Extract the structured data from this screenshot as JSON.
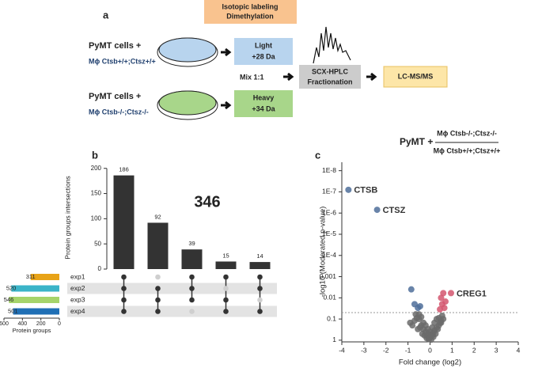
{
  "diagram": {
    "panel": "a",
    "label_box": [
      "Isotopic labeling",
      "Dimethylation"
    ],
    "top_cells": "PyMT cells +",
    "top_genotype": "Mϕ Ctsb+/+;Ctsz+/+",
    "light": [
      "Light",
      "+28 Da"
    ],
    "mix": "Mix 1:1",
    "bottom_cells": "PyMT cells +",
    "bottom_genotype": "Mϕ Ctsb-/-;Ctsz-/-",
    "heavy": [
      "Heavy",
      "+34 Da"
    ],
    "scx": [
      "SCX-HPLC",
      "Fractionation"
    ],
    "lcms": "LC-MS/MS"
  },
  "chart_data": [
    {
      "type": "upset",
      "panel": "b",
      "ylabel": "Protein groups intersections",
      "annotation": "346",
      "values": [
        186,
        92,
        39,
        15,
        14
      ],
      "ylim": [
        0,
        220
      ],
      "yticks": [
        0,
        50,
        100,
        150,
        200
      ],
      "color": "#333333",
      "sets": [
        {
          "name": "exp1",
          "size": 311,
          "color": "#e8a317"
        },
        {
          "name": "exp2",
          "size": 520,
          "color": "#3bb4c8"
        },
        {
          "name": "exp3",
          "size": 546,
          "color": "#a6d46a"
        },
        {
          "name": "exp4",
          "size": 501,
          "color": "#1f6fb5"
        }
      ],
      "membership": [
        [
          true,
          true,
          true,
          true
        ],
        [
          false,
          true,
          true,
          true
        ],
        [
          true,
          true,
          true,
          false
        ],
        [
          true,
          false,
          true,
          true
        ],
        [
          true,
          true,
          false,
          true
        ]
      ],
      "set_xlim": [
        600,
        0
      ],
      "set_xticks": [
        600,
        400,
        200,
        0
      ],
      "set_xlabel": "Protein groups"
    },
    {
      "type": "scatter",
      "panel": "c",
      "title_prefix": "PyMT +",
      "title_numerator": "Mϕ Ctsb-/-;Ctsz-/-",
      "title_denominator": "Mϕ Ctsb+/+;Ctsz+/+",
      "xlabel": "Fold change (log2)",
      "ylabel": "-log10 (Moderated p-value)",
      "xlim": [
        -4,
        4
      ],
      "xticks": [
        -4,
        -3,
        -2,
        -1,
        0,
        1,
        2,
        3,
        4
      ],
      "ylog": true,
      "ylim": [
        1.2,
        4e-09
      ],
      "yticks": [
        {
          "value": 1e-08,
          "label": "1E-8"
        },
        {
          "value": 1e-07,
          "label": "1E-7"
        },
        {
          "value": 1e-06,
          "label": "1E-6"
        },
        {
          "value": 1e-05,
          "label": "1E-5"
        },
        {
          "value": 0.0001,
          "label": "1E-4"
        },
        0.001,
        0.01,
        0.1,
        1
      ],
      "threshold": 0.05,
      "series": [
        {
          "color": "#6b6b6b",
          "x": [
            -0.9,
            -0.8,
            -0.7,
            -0.6,
            -0.55,
            -0.5,
            -0.45,
            -0.4,
            -0.35,
            -0.3,
            -0.25,
            -0.2,
            -0.15,
            -0.1,
            -0.05,
            0,
            0.05,
            0.1,
            0.15,
            0.2,
            0.25,
            0.3,
            0.35,
            0.4,
            0.45,
            0.5,
            -0.3,
            -0.2,
            -0.1,
            0,
            0.1,
            0.2,
            0.3,
            -0.4,
            0.4,
            -0.15,
            0.15,
            -0.05,
            0.05,
            0.6,
            -0.65,
            0.55,
            -0.5,
            0.5
          ],
          "values": [
            0.15,
            0.2,
            0.12,
            0.09,
            0.3,
            0.1,
            0.25,
            0.2,
            0.5,
            0.3,
            0.6,
            0.4,
            0.8,
            0.5,
            0.9,
            0.7,
            0.95,
            0.6,
            0.45,
            0.35,
            0.5,
            0.25,
            0.3,
            0.2,
            0.15,
            0.12,
            0.15,
            0.2,
            0.3,
            0.4,
            0.25,
            0.15,
            0.1,
            0.08,
            0.09,
            0.6,
            0.7,
            0.85,
            0.55,
            0.1,
            0.06,
            0.07,
            0.06,
            0.15
          ]
        },
        {
          "color": "#4f6f9a",
          "x": [
            -3.7,
            -2.4,
            -0.85,
            -0.7,
            -0.55,
            -0.45
          ],
          "values": [
            8e-08,
            7e-07,
            0.004,
            0.02,
            0.03,
            0.025
          ],
          "labels": [
            "CTSB",
            "CTSZ",
            null,
            null,
            null,
            null
          ]
        },
        {
          "color": "#d4566e",
          "x": [
            0.5,
            0.55,
            0.6,
            0.7,
            0.95,
            0.45,
            0.65
          ],
          "values": [
            0.01,
            0.02,
            0.006,
            0.015,
            0.006,
            0.035,
            0.03
          ],
          "labels": [
            null,
            null,
            null,
            null,
            "CREG1",
            null,
            null
          ]
        }
      ]
    }
  ]
}
